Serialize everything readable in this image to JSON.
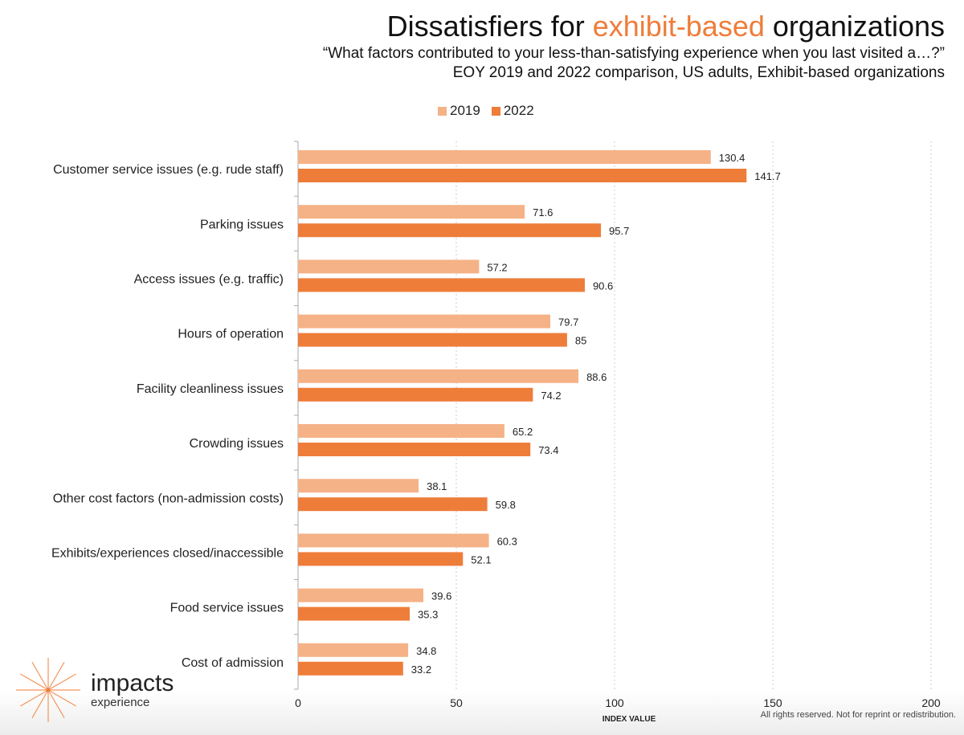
{
  "header": {
    "title_pre": "Dissatisfiers for ",
    "title_highlight": "exhibit-based",
    "title_post": " organizations",
    "subtitle1": "“What factors contributed to your less-than-satisfying experience when you last visited a…?”",
    "subtitle2": "EOY 2019 and 2022 comparison, US adults, Exhibit-based organizations"
  },
  "chart_data": {
    "type": "bar",
    "orientation": "horizontal",
    "categories": [
      "Customer service issues (e.g. rude staff)",
      "Parking issues",
      "Access issues (e.g. traffic)",
      "Hours of operation",
      "Facility cleanliness issues",
      "Crowding issues",
      "Other cost factors (non-admission costs)",
      "Exhibits/experiences closed/inaccessible",
      "Food service issues",
      "Cost of admission"
    ],
    "series": [
      {
        "name": "2019",
        "color": "#F5B287",
        "values": [
          130.4,
          71.6,
          57.2,
          79.7,
          88.6,
          65.2,
          38.1,
          60.3,
          39.6,
          34.8
        ],
        "labels": [
          "130.4",
          "71.6",
          "57.2",
          "79.7",
          "88.6",
          "65.2",
          "38.1",
          "60.3",
          "39.6",
          "34.8"
        ]
      },
      {
        "name": "2022",
        "color": "#EE7D3A",
        "values": [
          141.7,
          95.7,
          90.6,
          85,
          74.2,
          73.4,
          59.8,
          52.1,
          35.3,
          33.2
        ],
        "labels": [
          "141.7",
          "95.7",
          "90.6",
          "85",
          "74.2",
          "73.4",
          "59.8",
          "52.1",
          "35.3",
          "33.2"
        ]
      }
    ],
    "xlabel": "INDEX VALUE",
    "xlim": [
      0,
      200
    ],
    "xticks": [
      "0",
      "50",
      "100",
      "150",
      "200"
    ],
    "grid": true,
    "legend": "top"
  },
  "branding": {
    "logo_line1": "impacts",
    "logo_line2": "experience",
    "accent": "#EE7D3A"
  },
  "footer": {
    "note": "All rights reserved. Not for reprint or redistribution."
  }
}
